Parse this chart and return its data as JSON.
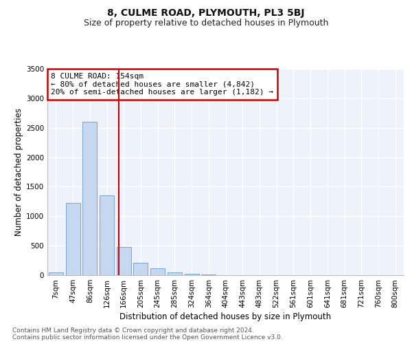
{
  "title": "8, CULME ROAD, PLYMOUTH, PL3 5BJ",
  "subtitle": "Size of property relative to detached houses in Plymouth",
  "xlabel": "Distribution of detached houses by size in Plymouth",
  "ylabel": "Number of detached properties",
  "bar_categories": [
    "7sqm",
    "47sqm",
    "86sqm",
    "126sqm",
    "166sqm",
    "205sqm",
    "245sqm",
    "285sqm",
    "324sqm",
    "364sqm",
    "404sqm",
    "443sqm",
    "483sqm",
    "522sqm",
    "561sqm",
    "601sqm",
    "641sqm",
    "681sqm",
    "721sqm",
    "760sqm",
    "800sqm"
  ],
  "bar_values": [
    50,
    1220,
    2600,
    1350,
    480,
    215,
    120,
    50,
    25,
    8,
    4,
    2,
    1,
    1,
    0,
    0,
    0,
    0,
    0,
    0,
    0
  ],
  "bar_color": "#c5d8f0",
  "bar_edgecolor": "#6699cc",
  "vline_color": "#cc0000",
  "annotation_line1": "8 CULME ROAD: 154sqm",
  "annotation_line2": "← 80% of detached houses are smaller (4,842)",
  "annotation_line3": "20% of semi-detached houses are larger (1,182) →",
  "annotation_box_color": "#cc0000",
  "ylim": [
    0,
    3500
  ],
  "yticks": [
    0,
    500,
    1000,
    1500,
    2000,
    2500,
    3000,
    3500
  ],
  "footer_line1": "Contains HM Land Registry data © Crown copyright and database right 2024.",
  "footer_line2": "Contains public sector information licensed under the Open Government Licence v3.0.",
  "background_color": "#edf2fb",
  "grid_color": "#ffffff",
  "title_fontsize": 10,
  "subtitle_fontsize": 9,
  "axis_label_fontsize": 8.5,
  "tick_fontsize": 7.5,
  "annotation_fontsize": 8,
  "footer_fontsize": 6.5
}
